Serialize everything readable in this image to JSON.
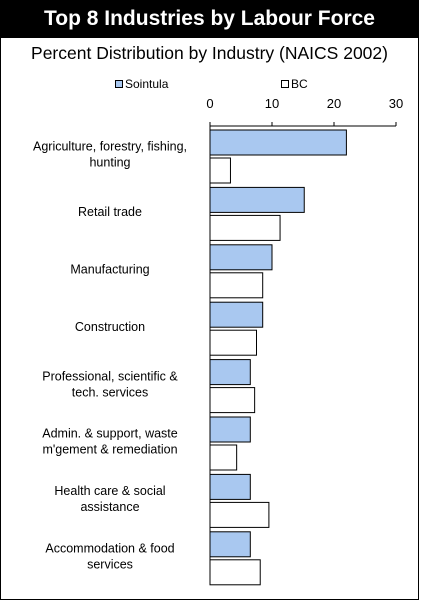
{
  "title": "Top 8 Industries by Labour Force",
  "subtitle": "Percent Distribution by Industry (NAICS 2002)",
  "colors": {
    "sointula": "#a9c8f0",
    "bc": "#ffffff",
    "outline": "#000000"
  },
  "chart_data": {
    "type": "bar",
    "orientation": "horizontal",
    "categories": [
      [
        "Agriculture, forestry, fishing,",
        "hunting"
      ],
      [
        "Retail trade"
      ],
      [
        "Manufacturing"
      ],
      [
        "Construction"
      ],
      [
        "Professional, scientific &",
        "tech. services"
      ],
      [
        "Admin. & support, waste",
        "m'gement & remediation"
      ],
      [
        "Health care & social",
        "assistance"
      ],
      [
        "Accommodation & food",
        "services"
      ]
    ],
    "series": [
      {
        "name": "Sointula",
        "values": [
          22.0,
          15.2,
          10.0,
          8.5,
          6.5,
          6.5,
          6.5,
          6.5
        ]
      },
      {
        "name": "BC",
        "values": [
          3.3,
          11.3,
          8.5,
          7.5,
          7.2,
          4.3,
          9.5,
          8.1
        ]
      }
    ],
    "xlim": [
      0,
      30
    ],
    "xticks": [
      "0",
      "10",
      "20",
      "30"
    ],
    "legend_position": "top",
    "grid": false
  }
}
